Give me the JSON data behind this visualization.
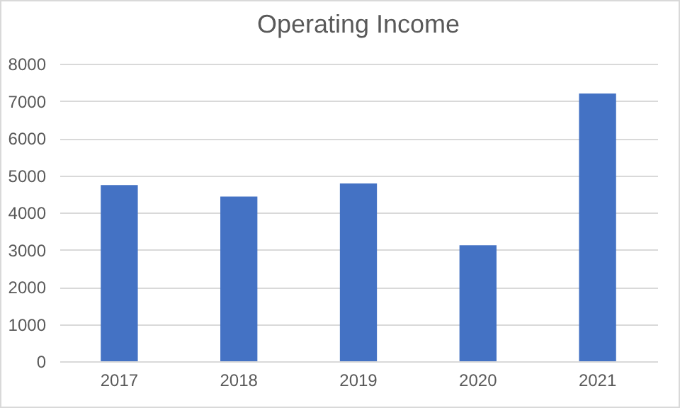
{
  "chart_data": {
    "type": "bar",
    "title": "Operating Income",
    "categories": [
      "2017",
      "2018",
      "2019",
      "2020",
      "2021"
    ],
    "values": [
      4740,
      4430,
      4780,
      3120,
      7200
    ],
    "color": "#4472c4",
    "ylim": [
      0,
      8000
    ],
    "yticks": [
      0,
      1000,
      2000,
      3000,
      4000,
      5000,
      6000,
      7000,
      8000
    ],
    "grid": "y"
  }
}
